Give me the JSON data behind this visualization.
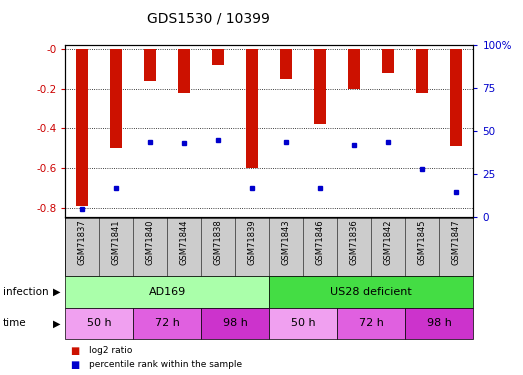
{
  "title": "GDS1530 / 10399",
  "samples": [
    "GSM71837",
    "GSM71841",
    "GSM71840",
    "GSM71844",
    "GSM71838",
    "GSM71839",
    "GSM71843",
    "GSM71846",
    "GSM71836",
    "GSM71842",
    "GSM71845",
    "GSM71847"
  ],
  "log2_ratio": [
    -0.79,
    -0.5,
    -0.16,
    -0.22,
    -0.08,
    -0.6,
    -0.15,
    -0.38,
    -0.2,
    -0.12,
    -0.22,
    -0.49
  ],
  "percentile_rank": [
    5,
    17,
    44,
    43,
    45,
    17,
    44,
    17,
    42,
    44,
    28,
    15
  ],
  "bar_color": "#cc1100",
  "dot_color": "#0000cc",
  "ylim_left": [
    -0.85,
    0.02
  ],
  "ylim_right": [
    0,
    100
  ],
  "yticks_left": [
    -0.8,
    -0.6,
    -0.4,
    -0.2,
    0.0
  ],
  "yticks_right": [
    0,
    25,
    50,
    75,
    100
  ],
  "ytick_labels_left": [
    "-0.8",
    "-0.6",
    "-0.4",
    "-0.2",
    "-0"
  ],
  "ytick_labels_right": [
    "0",
    "25",
    "50",
    "75",
    "100%"
  ],
  "infection_groups": [
    {
      "label": "AD169",
      "start": 0,
      "end": 5,
      "color": "#aaffaa"
    },
    {
      "label": "US28 deficient",
      "start": 6,
      "end": 11,
      "color": "#44dd44"
    }
  ],
  "time_groups": [
    {
      "label": "50 h",
      "start": 0,
      "end": 1,
      "color": "#f0a0f0"
    },
    {
      "label": "72 h",
      "start": 2,
      "end": 3,
      "color": "#e060e0"
    },
    {
      "label": "98 h",
      "start": 4,
      "end": 5,
      "color": "#cc33cc"
    },
    {
      "label": "50 h",
      "start": 6,
      "end": 7,
      "color": "#f0a0f0"
    },
    {
      "label": "72 h",
      "start": 8,
      "end": 9,
      "color": "#e060e0"
    },
    {
      "label": "98 h",
      "start": 10,
      "end": 11,
      "color": "#cc33cc"
    }
  ],
  "label_infection": "infection",
  "label_time": "time",
  "legend_red": "log2 ratio",
  "legend_blue": "percentile rank within the sample",
  "bar_width": 0.35,
  "tick_label_color_left": "#cc0000",
  "tick_label_color_right": "#0000cc",
  "bg_xtick": "#cccccc",
  "xlim": [
    -0.5,
    11.5
  ]
}
